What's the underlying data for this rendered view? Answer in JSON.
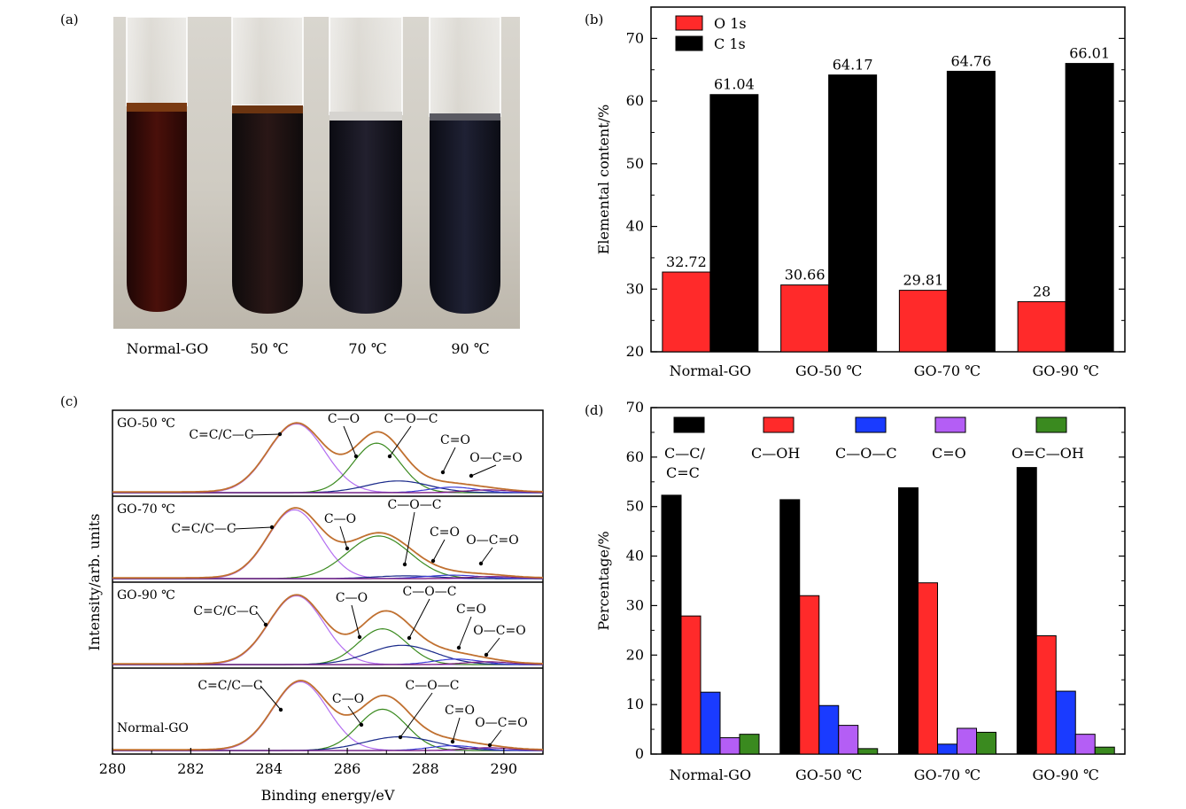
{
  "panels": {
    "a": {
      "label": "(a)",
      "tube_labels": [
        "Normal-GO",
        "50 ℃",
        "70 ℃",
        "90 ℃"
      ]
    },
    "b": {
      "label": "(b)"
    },
    "c": {
      "label": "(c)"
    },
    "d": {
      "label": "(d)"
    }
  },
  "chart_data": [
    {
      "id": "b",
      "type": "bar",
      "categories": [
        "Normal-GO",
        "GO-50 ℃",
        "GO-70 ℃",
        "GO-90 ℃"
      ],
      "series": [
        {
          "name": "O 1s",
          "color": "#ff2a2a",
          "values": [
            32.72,
            30.66,
            29.81,
            28
          ]
        },
        {
          "name": "C 1s",
          "color": "#000000",
          "values": [
            61.04,
            64.17,
            64.76,
            66.01
          ]
        }
      ],
      "value_labels": [
        [
          "32.72",
          "30.66",
          "29.81",
          "28"
        ],
        [
          "61.04",
          "64.17",
          "64.76",
          "66.01"
        ]
      ],
      "ylabel": "Elemental content/%",
      "ylim": [
        20,
        75
      ],
      "yticks": [
        "20",
        "30",
        "40",
        "50",
        "60",
        "70"
      ],
      "legend_position": "top-left"
    },
    {
      "id": "c",
      "type": "line",
      "xlabel": "Binding energy/eV",
      "ylabel": "Intensity/arb. units",
      "xlim": [
        280,
        291
      ],
      "xticks": [
        "280",
        "282",
        "284",
        "286",
        "288",
        "290"
      ],
      "stack": [
        {
          "name": "GO-50 ℃",
          "annotations": [
            "C=C/C—C",
            "C—O",
            "C—O—C",
            "C=O",
            "O—C=O"
          ],
          "peaks": [
            {
              "center": 284.7,
              "height": 1.0,
              "sigma": 0.72,
              "color": "#b36ef0"
            },
            {
              "center": 286.75,
              "height": 0.72,
              "sigma": 0.6,
              "color": "#3a8a1f"
            },
            {
              "center": 287.3,
              "height": 0.17,
              "sigma": 0.8,
              "color": "#1a2a8a"
            },
            {
              "center": 288.7,
              "height": 0.08,
              "sigma": 0.6,
              "color": "#3b3bd6"
            },
            {
              "center": 289.6,
              "height": 0.04,
              "sigma": 0.6,
              "color": "#7a1a7a"
            }
          ]
        },
        {
          "name": "GO-70 ℃",
          "annotations": [
            "C=C/C—C",
            "C—O",
            "C—O—C",
            "C=O",
            "O—C=O"
          ],
          "peaks": [
            {
              "center": 284.65,
              "height": 1.0,
              "sigma": 0.68,
              "color": "#b36ef0"
            },
            {
              "center": 286.8,
              "height": 0.62,
              "sigma": 0.8,
              "color": "#3a8a1f"
            },
            {
              "center": 287.5,
              "height": 0.04,
              "sigma": 0.8,
              "color": "#1a2a8a"
            },
            {
              "center": 288.7,
              "height": 0.05,
              "sigma": 0.7,
              "color": "#3b3bd6"
            },
            {
              "center": 289.7,
              "height": 0.03,
              "sigma": 0.6,
              "color": "#7a1a7a"
            }
          ]
        },
        {
          "name": "GO-90 ℃",
          "annotations": [
            "C=C/C—C",
            "C—O",
            "C—O—C",
            "C=O",
            "O—C=O"
          ],
          "peaks": [
            {
              "center": 284.7,
              "height": 1.0,
              "sigma": 0.7,
              "color": "#b36ef0"
            },
            {
              "center": 286.9,
              "height": 0.52,
              "sigma": 0.62,
              "color": "#3a8a1f"
            },
            {
              "center": 287.4,
              "height": 0.28,
              "sigma": 0.85,
              "color": "#1a2a8a"
            },
            {
              "center": 288.8,
              "height": 0.08,
              "sigma": 0.6,
              "color": "#3b3bd6"
            },
            {
              "center": 289.6,
              "height": 0.04,
              "sigma": 0.6,
              "color": "#7a1a7a"
            }
          ]
        },
        {
          "name": "Normal-GO",
          "annotations": [
            "C=C/C—C",
            "C—O",
            "C—O—C",
            "C=O",
            "O—C=O"
          ],
          "peaks": [
            {
              "center": 284.8,
              "height": 1.0,
              "sigma": 0.7,
              "color": "#b36ef0"
            },
            {
              "center": 286.9,
              "height": 0.6,
              "sigma": 0.62,
              "color": "#3a8a1f"
            },
            {
              "center": 287.35,
              "height": 0.2,
              "sigma": 0.9,
              "color": "#1a2a8a"
            },
            {
              "center": 288.7,
              "height": 0.07,
              "sigma": 0.6,
              "color": "#3b3bd6"
            },
            {
              "center": 289.6,
              "height": 0.04,
              "sigma": 0.6,
              "color": "#7a1a7a"
            }
          ]
        }
      ],
      "envelope_color": "#c07030"
    },
    {
      "id": "d",
      "type": "bar",
      "categories": [
        "Normal-GO",
        "GO-50 ℃",
        "GO-70 ℃",
        "GO-90 ℃"
      ],
      "series": [
        {
          "name": "C—C/C=C",
          "color": "#000000",
          "values": [
            52.3,
            51.4,
            53.8,
            57.9
          ]
        },
        {
          "name": "C—OH",
          "color": "#ff2a2a",
          "values": [
            27.9,
            32.0,
            34.6,
            23.9
          ]
        },
        {
          "name": "C—O—C",
          "color": "#1a3bff",
          "values": [
            12.5,
            9.8,
            2.0,
            12.7
          ]
        },
        {
          "name": "C=O",
          "color": "#b45ef5",
          "values": [
            3.3,
            5.8,
            5.2,
            4.0
          ]
        },
        {
          "name": "O=C—OH",
          "color": "#3a8a1f",
          "values": [
            4.0,
            1.1,
            4.4,
            1.4
          ]
        }
      ],
      "legend_labels": [
        "C—C/",
        "C=C",
        "C—OH",
        "C—O—C",
        "C=O",
        "O=C—OH"
      ],
      "ylabel": "Percentage/%",
      "ylim": [
        0,
        70
      ],
      "yticks": [
        "0",
        "10",
        "20",
        "30",
        "40",
        "50",
        "60",
        "70"
      ],
      "legend_position": "top"
    }
  ]
}
